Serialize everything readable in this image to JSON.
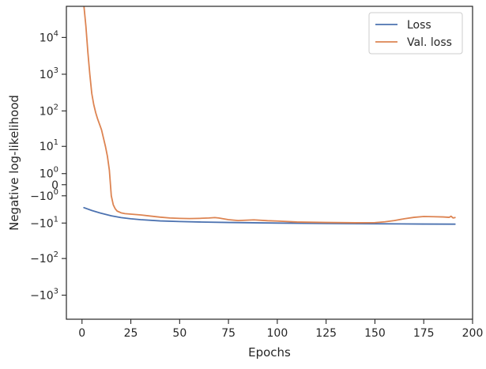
{
  "chart_data": {
    "type": "line",
    "title": "",
    "xlabel": "Epochs",
    "ylabel": "Negative log-likelihood",
    "xlim": [
      -8,
      200
    ],
    "x_ticks": [
      {
        "value": 0,
        "label": "0"
      },
      {
        "value": 25,
        "label": "25"
      },
      {
        "value": 50,
        "label": "50"
      },
      {
        "value": 75,
        "label": "75"
      },
      {
        "value": 100,
        "label": "100"
      },
      {
        "value": 125,
        "label": "125"
      },
      {
        "value": 150,
        "label": "150"
      },
      {
        "value": 175,
        "label": "175"
      },
      {
        "value": 200,
        "label": "200"
      }
    ],
    "y_scale": "symlog",
    "ylim": [
      -4500,
      70000
    ],
    "y_ticks": [
      {
        "value": 10000,
        "base": "10",
        "exp": "4",
        "sign": ""
      },
      {
        "value": 1000,
        "base": "10",
        "exp": "3",
        "sign": ""
      },
      {
        "value": 100,
        "base": "10",
        "exp": "2",
        "sign": ""
      },
      {
        "value": 10,
        "base": "10",
        "exp": "1",
        "sign": ""
      },
      {
        "value": 1,
        "base": "10",
        "exp": "0",
        "sign": ""
      },
      {
        "value": 0,
        "base": "0",
        "exp": "",
        "sign": ""
      },
      {
        "value": -1,
        "base": "10",
        "exp": "0",
        "sign": "−"
      },
      {
        "value": -10,
        "base": "10",
        "exp": "1",
        "sign": "−"
      },
      {
        "value": -100,
        "base": "10",
        "exp": "2",
        "sign": "−"
      },
      {
        "value": -1000,
        "base": "10",
        "exp": "3",
        "sign": "−"
      }
    ],
    "grid": false,
    "legend_position": "top-right",
    "series": [
      {
        "name": "Loss",
        "color": "#4c72b0",
        "x": [
          1,
          5,
          10,
          15,
          20,
          25,
          30,
          40,
          50,
          60,
          75,
          100,
          125,
          150,
          175,
          191
        ],
        "y": [
          -3.2,
          -4.0,
          -5.0,
          -6.0,
          -6.8,
          -7.4,
          -7.9,
          -8.6,
          -9.0,
          -9.3,
          -9.6,
          -10.0,
          -10.3,
          -10.5,
          -10.7,
          -10.8
        ]
      },
      {
        "name": "Val. loss",
        "color": "#dd8452",
        "x": [
          1,
          2,
          3,
          4,
          5,
          6,
          7,
          8,
          10,
          12,
          13,
          14,
          15,
          16,
          17,
          18,
          20,
          22,
          25,
          30,
          35,
          40,
          45,
          50,
          55,
          60,
          65,
          68,
          70,
          75,
          80,
          88,
          95,
          100,
          110,
          125,
          140,
          150,
          155,
          160,
          165,
          170,
          175,
          180,
          185,
          188,
          189,
          190,
          191
        ],
        "y": [
          70000,
          20000,
          4000,
          1000,
          300,
          150,
          90,
          60,
          30,
          10,
          5,
          1.5,
          -1,
          -2.5,
          -3.5,
          -4.2,
          -4.8,
          -5.1,
          -5.3,
          -5.6,
          -6.1,
          -6.6,
          -7.0,
          -7.2,
          -7.3,
          -7.2,
          -7.0,
          -6.8,
          -7.0,
          -7.9,
          -8.4,
          -8.0,
          -8.5,
          -8.7,
          -9.3,
          -9.6,
          -9.8,
          -9.7,
          -9.2,
          -8.4,
          -7.4,
          -6.7,
          -6.3,
          -6.4,
          -6.5,
          -6.7,
          -6.2,
          -7.0,
          -6.8
        ]
      }
    ]
  }
}
